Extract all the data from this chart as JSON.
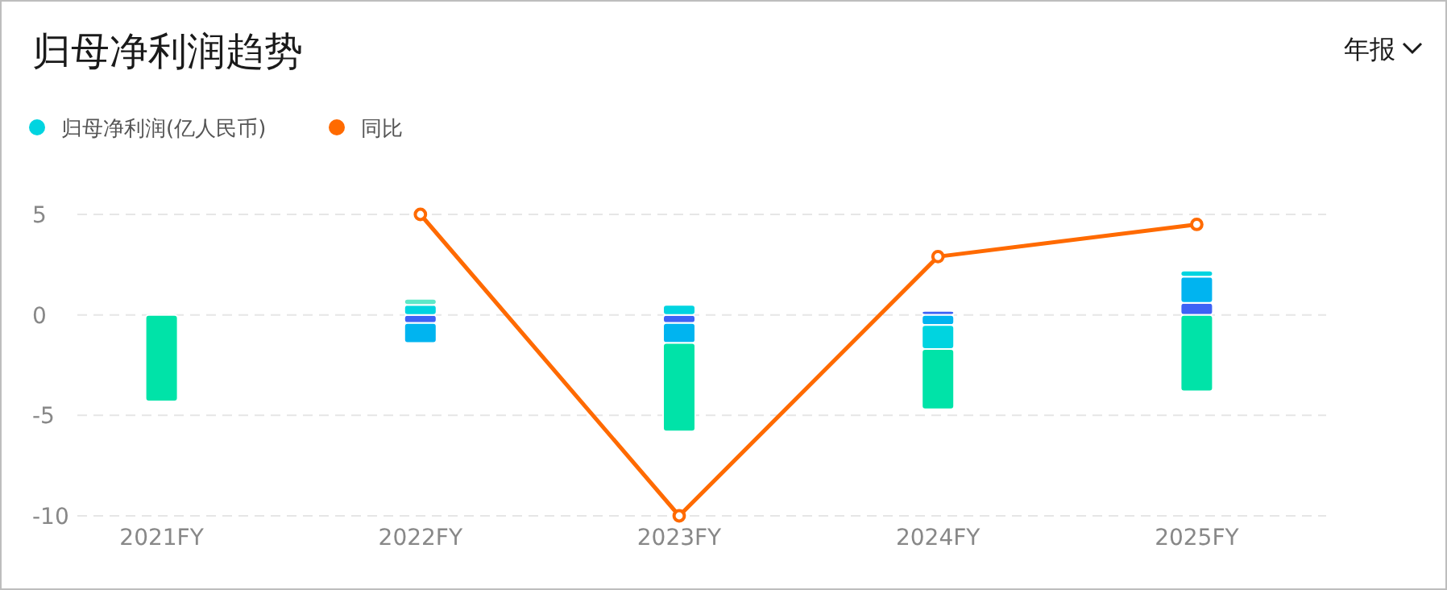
{
  "chart_data": {
    "type": "bar",
    "title": "归母净利润趋势",
    "annotations": [
      "年报"
    ],
    "categories": [
      "2021FY",
      "2022FY",
      "2023FY",
      "2024FY",
      "2025FY"
    ],
    "stacked": true,
    "legend": "top left",
    "grid": "y",
    "ylim": [
      -10,
      5
    ],
    "yticks": [
      -10,
      -5,
      0,
      5
    ],
    "marker": "circle",
    "series": [
      {
        "color": "#3d62f5",
        "values": [
          0,
          -0.4,
          -0.4,
          0.2,
          0.6
        ]
      },
      {
        "color": "#00b4f0",
        "values": [
          0,
          -1.0,
          -1.0,
          -0.5,
          1.3
        ]
      },
      {
        "name": "归母净利润(亿人民币)",
        "color": "#00d4e0",
        "values": [
          0,
          0.5,
          0.5,
          -1.2,
          0.3
        ]
      },
      {
        "color": "#00e3a8",
        "values": [
          -4.3,
          0,
          -4.4,
          -3.0,
          -3.8
        ]
      },
      {
        "color": "#5ee8c8",
        "values": [
          0,
          0.3,
          0,
          0,
          0
        ]
      },
      {
        "name": "同比",
        "type": "line",
        "color": "#ff6a00",
        "values": [
          null,
          5,
          -10,
          2.9,
          4.5
        ]
      }
    ]
  }
}
